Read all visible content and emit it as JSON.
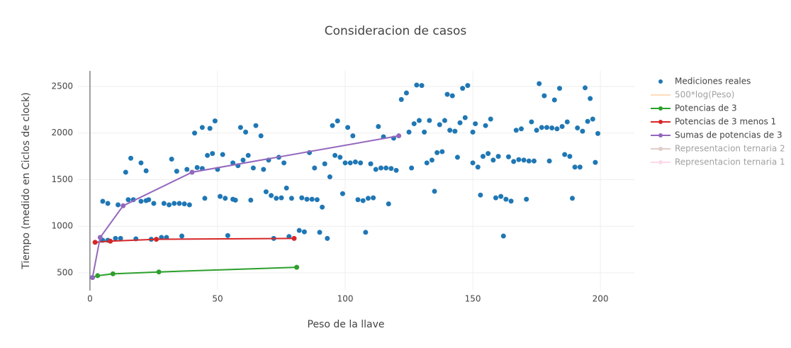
{
  "chart_data": {
    "type": "scatter",
    "title": "Consideracion de casos",
    "x_label": "Peso de la llave",
    "y_label": "Tiempo (medido en Ciclos de clock)",
    "xlim": [
      -4.7,
      213.3
    ],
    "ylim": [
      310,
      2667
    ],
    "xticks": [
      0,
      50,
      100,
      150,
      200
    ],
    "yticks": [
      500,
      1000,
      1500,
      2000,
      2500
    ],
    "grid": true,
    "legend": "right",
    "series": [
      {
        "name": "Mediciones reales",
        "color": "#1f77b4",
        "mode": "markers",
        "x": [
          5,
          7,
          5,
          7,
          10,
          11,
          12,
          14,
          15,
          16,
          17,
          18,
          20,
          20,
          22,
          22,
          23,
          24,
          25,
          28,
          29,
          30,
          31,
          32,
          33,
          34,
          35,
          36,
          37,
          38,
          39,
          41,
          42,
          44,
          44,
          45,
          46,
          47,
          48,
          49,
          50,
          51,
          52,
          53,
          54,
          56,
          56,
          57,
          58,
          59,
          60,
          61,
          62,
          63,
          64,
          65,
          67,
          68,
          69,
          70,
          71,
          72,
          73,
          74,
          75,
          76,
          77,
          78,
          79,
          82,
          84,
          83,
          85,
          86,
          87,
          88,
          89,
          90,
          91,
          92,
          93,
          94,
          95,
          96,
          97,
          98,
          99,
          100,
          101,
          102,
          103,
          104,
          105,
          106,
          107,
          108,
          109,
          110,
          111,
          112,
          113,
          114,
          115,
          116,
          117,
          118,
          119,
          120,
          122,
          124,
          125,
          126,
          127,
          128,
          129,
          130,
          131,
          132,
          133,
          134,
          135,
          136,
          137,
          138,
          139,
          140,
          141,
          142,
          143,
          144,
          145,
          146,
          147,
          148,
          150,
          150,
          151,
          152,
          153,
          154,
          155,
          156,
          157,
          158,
          159,
          160,
          161,
          162,
          163,
          164,
          165,
          166,
          167,
          168,
          169,
          170,
          171,
          172,
          173,
          174,
          175,
          176,
          177,
          178,
          179,
          180,
          181,
          182,
          183,
          184,
          185,
          186,
          187,
          188,
          189,
          190,
          191,
          192,
          193,
          194,
          195,
          196,
          197,
          198,
          199
        ],
        "values": [
          1268,
          1245,
          850,
          850,
          870,
          1230,
          870,
          1580,
          1285,
          1730,
          1285,
          865,
          1680,
          1268,
          1275,
          1595,
          1285,
          860,
          1245,
          880,
          1245,
          880,
          1230,
          1720,
          1245,
          1590,
          1245,
          895,
          1240,
          1610,
          1230,
          2000,
          1630,
          2060,
          1620,
          1300,
          1760,
          2050,
          1780,
          2130,
          1610,
          1320,
          1770,
          1300,
          900,
          1290,
          1680,
          1280,
          1650,
          2060,
          1710,
          2010,
          1760,
          1280,
          1625,
          2080,
          1970,
          1610,
          1370,
          1710,
          1330,
          870,
          1300,
          1740,
          1305,
          1680,
          1410,
          890,
          1300,
          955,
          940,
          1305,
          1290,
          1790,
          1290,
          1625,
          1285,
          935,
          1205,
          1670,
          870,
          1530,
          2080,
          1760,
          2130,
          1740,
          1350,
          1680,
          2060,
          1680,
          1970,
          1690,
          1285,
          1680,
          1275,
          935,
          1300,
          1670,
          1305,
          1610,
          2070,
          1625,
          1960,
          1625,
          1240,
          1620,
          1945,
          1600,
          2360,
          2430,
          2010,
          1625,
          2100,
          2515,
          2135,
          2510,
          2010,
          1680,
          2135,
          1710,
          1375,
          1790,
          2090,
          1800,
          2135,
          2415,
          2030,
          2400,
          2020,
          1740,
          2110,
          2480,
          2165,
          2510,
          2010,
          1680,
          2100,
          1635,
          1335,
          1750,
          2080,
          1780,
          2150,
          1710,
          1305,
          1750,
          1320,
          895,
          1290,
          1745,
          1270,
          1695,
          2030,
          1715,
          2045,
          1710,
          1290,
          1700,
          2120,
          1700,
          2030,
          2530,
          2060,
          2400,
          2060,
          1700,
          2055,
          2355,
          2045,
          2480,
          2070,
          1770,
          2120,
          1750,
          1300,
          1635,
          2055,
          1635,
          2020,
          2485,
          2125,
          2370,
          2150,
          1685,
          1995
        ]
      },
      {
        "name": "500*log(Peso)",
        "color": "#ffbb78",
        "mode": "lines",
        "visible": "legendonly"
      },
      {
        "name": "Potencias de 3",
        "color": "#2ca02c",
        "mode": "lines+markers",
        "x": [
          1,
          3,
          9,
          27,
          81
        ],
        "values": [
          450,
          470,
          490,
          510,
          560
        ]
      },
      {
        "name": "Potencias de 3 menos 1",
        "color": "#d62728",
        "mode": "lines+markers",
        "x": [
          2,
          8,
          26,
          80
        ],
        "values": [
          828,
          840,
          860,
          870
        ]
      },
      {
        "name": "Sumas de potencias de 3",
        "color": "#9467bd",
        "mode": "lines+markers",
        "x": [
          1,
          4,
          13,
          40,
          121
        ],
        "values": [
          450,
          880,
          1220,
          1580,
          1970
        ]
      },
      {
        "name": "Representacion ternaria 2",
        "color": "#c49c94",
        "mode": "lines+markers",
        "visible": "legendonly"
      },
      {
        "name": "Representacion ternaria 1",
        "color": "#f7b6d2",
        "mode": "lines+markers",
        "visible": "legendonly"
      }
    ]
  }
}
